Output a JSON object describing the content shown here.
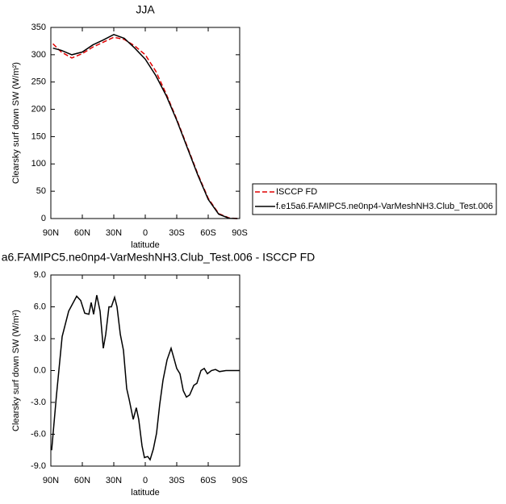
{
  "chart_data": [
    {
      "type": "line",
      "title": "JJA",
      "xlabel": "latitude",
      "ylabel": "Clearsky surf down SW (W/m²)",
      "xlim": [
        90,
        -90
      ],
      "ylim": [
        0,
        350
      ],
      "xticks": [
        {
          "value": 90,
          "label": "90N"
        },
        {
          "value": 60,
          "label": "60N"
        },
        {
          "value": 30,
          "label": "30N"
        },
        0,
        {
          "value": -30,
          "label": "30S"
        },
        {
          "value": -60,
          "label": "60S"
        },
        {
          "value": -90,
          "label": "90S"
        }
      ],
      "yticks": [
        0,
        50,
        100,
        150,
        200,
        250,
        300,
        350
      ],
      "legend": "right",
      "x": [
        88,
        80,
        70,
        60,
        50,
        40,
        30,
        20,
        10,
        0,
        -10,
        -20,
        -30,
        -40,
        -50,
        -60,
        -70,
        -80,
        -88
      ],
      "series": [
        {
          "name": "ISCCP FD",
          "color": "#e00000",
          "linestyle": "dashed",
          "values": [
            320,
            305,
            294,
            302,
            314,
            323,
            332,
            328,
            316,
            300,
            270,
            228,
            182,
            132,
            82,
            37,
            9,
            1,
            0
          ]
        },
        {
          "name": "f.e15a6.FAMIPC5.ne0np4-VarMeshNH3.Club_Test.006",
          "color": "#000000",
          "linestyle": "solid",
          "values": [
            312,
            308,
            300,
            305,
            318,
            327,
            337,
            330,
            312,
            292,
            262,
            225,
            180,
            130,
            80,
            35,
            8,
            0.5,
            0
          ]
        }
      ]
    },
    {
      "type": "line",
      "title": "a6.FAMIPC5.ne0np4-VarMeshNH3.Club_Test.006 - ISCCP FD",
      "xlabel": "latitude",
      "ylabel": "Clearsky surf down SW (W/m²)",
      "xlim": [
        90,
        -90
      ],
      "ylim": [
        -9,
        9
      ],
      "xticks": [
        {
          "value": 90,
          "label": "90N"
        },
        {
          "value": 60,
          "label": "60N"
        },
        {
          "value": 30,
          "label": "30N"
        },
        0,
        {
          "value": -30,
          "label": "30S"
        },
        {
          "value": -60,
          "label": "60S"
        },
        {
          "value": -90,
          "label": "90S"
        }
      ],
      "yticks": [
        {
          "value": -9,
          "label": "-9.0"
        },
        {
          "value": -6,
          "label": "-6.0"
        },
        {
          "value": -3,
          "label": "-3.0"
        },
        {
          "value": 0,
          "label": "0.0"
        },
        {
          "value": 3,
          "label": "3.0"
        },
        {
          "value": 6,
          "label": "6.0"
        },
        {
          "value": 9,
          "label": "9.0"
        }
      ],
      "x": [
        89.2,
        84.6,
        79.2,
        73,
        65.4,
        61.5,
        57.7,
        53.8,
        51.5,
        49.2,
        46.2,
        43.1,
        40,
        37.7,
        34.6,
        32.3,
        29.2,
        26.9,
        23.8,
        20.8,
        17.7,
        15.4,
        11.5,
        8.5,
        6.2,
        3.1,
        0.8,
        -2.3,
        -4.6,
        -7.7,
        -10.8,
        -13.8,
        -16.9,
        -20.8,
        -24.6,
        -26.9,
        -30,
        -33.1,
        -36.2,
        -39.2,
        -42.3,
        -46.2,
        -49.2,
        -53.1,
        -56.2,
        -59.2,
        -63.1,
        -66.9,
        -70.8,
        -76.9,
        -84.6,
        -90
      ],
      "series": [
        {
          "color": "#000000",
          "linestyle": "solid",
          "values": [
            -7.5,
            -2.3,
            3.2,
            5.6,
            7.0,
            6.6,
            5.4,
            5.3,
            6.4,
            5.3,
            7.1,
            5.6,
            2.1,
            3.4,
            6.0,
            6.0,
            6.9,
            6.0,
            3.4,
            1.9,
            -1.7,
            -2.7,
            -4.6,
            -3.5,
            -4.6,
            -7.1,
            -8.2,
            -8.1,
            -8.4,
            -7.4,
            -5.9,
            -3.2,
            -0.9,
            1.0,
            2.1,
            1.3,
            0.2,
            -0.3,
            -1.9,
            -2.5,
            -2.3,
            -1.4,
            -1.2,
            0.0,
            0.2,
            -0.3,
            0.0,
            0.1,
            -0.1,
            0.0,
            0.0,
            0.0
          ]
        }
      ]
    }
  ]
}
